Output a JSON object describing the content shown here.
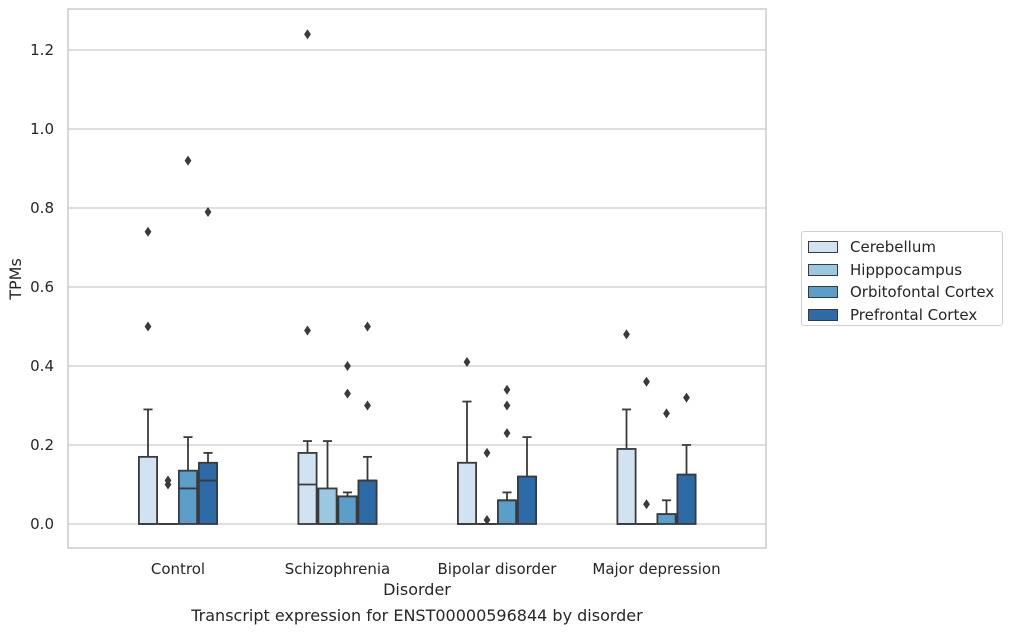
{
  "chart_data": {
    "type": "box",
    "caption": "Transcript expression for ENST00000596844 by disorder",
    "xlabel": "Disorder",
    "ylabel": "TPMs",
    "ylim": [
      -0.06,
      1.3
    ],
    "yticks": [
      0.0,
      0.2,
      0.4,
      0.6,
      0.8,
      1.0,
      1.2
    ],
    "ytick_labels": [
      "0.0",
      "0.2",
      "0.4",
      "0.6",
      "0.8",
      "1.0",
      "1.2"
    ],
    "categories": [
      "Control",
      "Schizophrenia",
      "Bipolar disorder",
      "Major depression"
    ],
    "grid": true,
    "legend_position": "right",
    "series": [
      {
        "name": "Cerebellum",
        "color": "#d1e2f2",
        "boxes": [
          {
            "min": 0.0,
            "q1": 0.0,
            "median": 0.0,
            "q3": 0.17,
            "max": 0.29,
            "outliers": [
              0.5,
              0.74
            ]
          },
          {
            "min": 0.0,
            "q1": 0.0,
            "median": 0.1,
            "q3": 0.18,
            "max": 0.21,
            "outliers": [
              0.49,
              1.24
            ]
          },
          {
            "min": 0.0,
            "q1": 0.0,
            "median": 0.0,
            "q3": 0.155,
            "max": 0.31,
            "outliers": [
              0.41
            ]
          },
          {
            "min": 0.0,
            "q1": 0.0,
            "median": 0.0,
            "q3": 0.19,
            "max": 0.29,
            "outliers": [
              0.48
            ]
          }
        ]
      },
      {
        "name": "Hipppocampus",
        "color": "#9ac8e0",
        "boxes": [
          {
            "min": 0.0,
            "q1": 0.0,
            "median": 0.0,
            "q3": 0.0,
            "max": 0.0,
            "outliers": [
              0.1,
              0.11
            ]
          },
          {
            "min": 0.0,
            "q1": 0.0,
            "median": 0.0,
            "q3": 0.09,
            "max": 0.21,
            "outliers": []
          },
          {
            "min": 0.0,
            "q1": 0.0,
            "median": 0.0,
            "q3": 0.0,
            "max": 0.0,
            "outliers": [
              0.01,
              0.18
            ]
          },
          {
            "min": 0.0,
            "q1": 0.0,
            "median": 0.0,
            "q3": 0.0,
            "max": 0.0,
            "outliers": [
              0.05,
              0.36
            ]
          }
        ]
      },
      {
        "name": "Orbitofontal Cortex",
        "color": "#5a9ec9",
        "boxes": [
          {
            "min": 0.0,
            "q1": 0.0,
            "median": 0.09,
            "q3": 0.135,
            "max": 0.22,
            "outliers": [
              0.92
            ]
          },
          {
            "min": 0.0,
            "q1": 0.0,
            "median": 0.07,
            "q3": 0.07,
            "max": 0.08,
            "outliers": [
              0.33,
              0.4
            ]
          },
          {
            "min": 0.0,
            "q1": 0.0,
            "median": 0.06,
            "q3": 0.06,
            "max": 0.08,
            "outliers": [
              0.23,
              0.3,
              0.34
            ]
          },
          {
            "min": 0.0,
            "q1": 0.0,
            "median": 0.025,
            "q3": 0.025,
            "max": 0.06,
            "outliers": [
              0.28
            ]
          }
        ]
      },
      {
        "name": "Prefrontal Cortex",
        "color": "#2c6aa8",
        "boxes": [
          {
            "min": 0.0,
            "q1": 0.0,
            "median": 0.11,
            "q3": 0.155,
            "max": 0.18,
            "outliers": [
              0.79
            ]
          },
          {
            "min": 0.0,
            "q1": 0.0,
            "median": 0.11,
            "q3": 0.11,
            "max": 0.17,
            "outliers": [
              0.3,
              0.5
            ]
          },
          {
            "min": 0.0,
            "q1": 0.0,
            "median": 0.12,
            "q3": 0.12,
            "max": 0.22,
            "outliers": []
          },
          {
            "min": 0.0,
            "q1": 0.0,
            "median": 0.125,
            "q3": 0.125,
            "max": 0.2,
            "outliers": [
              0.32
            ]
          }
        ]
      }
    ]
  }
}
